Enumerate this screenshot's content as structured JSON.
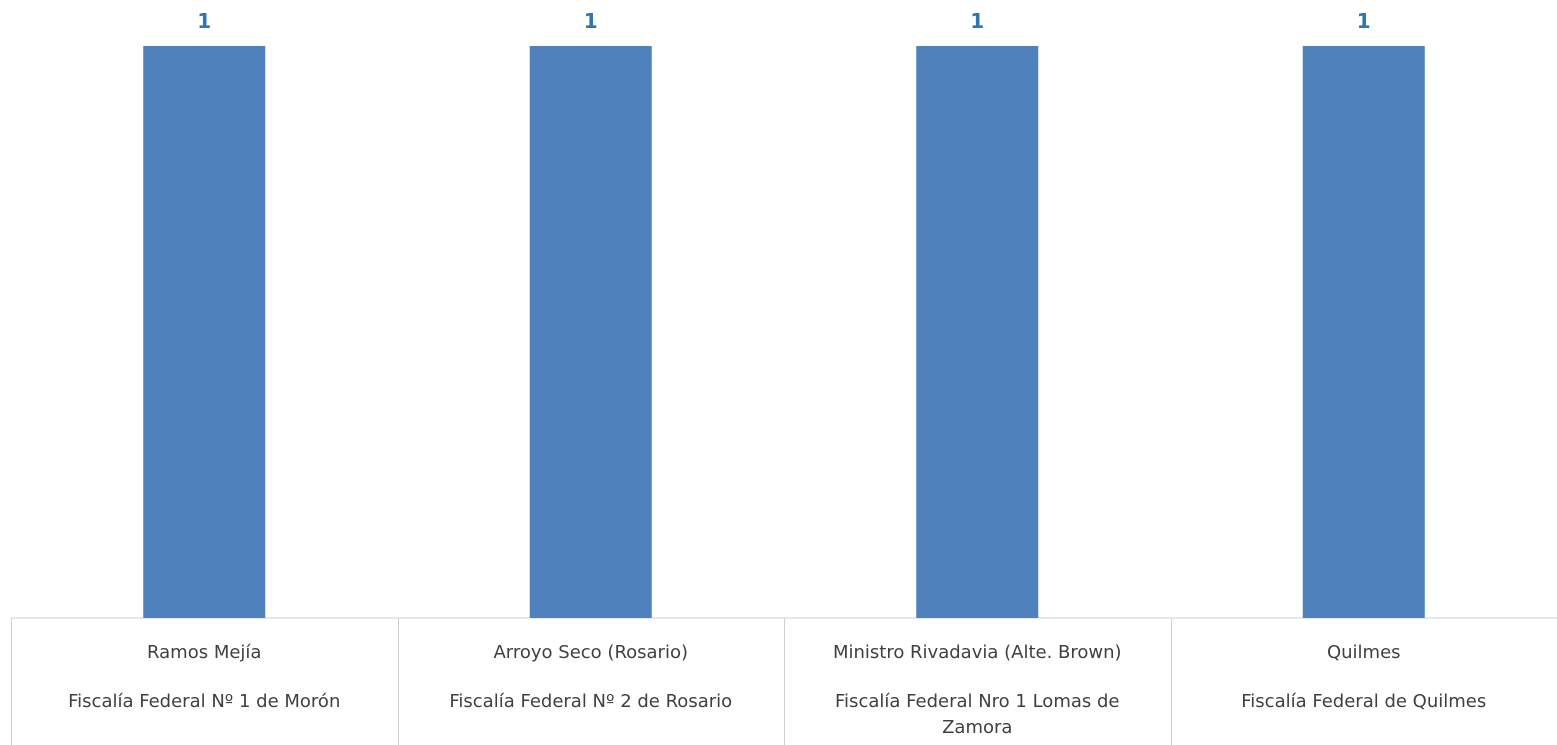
{
  "chart_data": {
    "type": "bar",
    "categories": [
      [
        "Ramos Mejía",
        "Fiscalía Federal Nº 1 de Morón"
      ],
      [
        "Arroyo Seco (Rosario)",
        "Fiscalía Federal Nº 2 de Rosario"
      ],
      [
        "Ministro Rivadavia (Alte. Brown)",
        "Fiscalía Federal Nro 1 Lomas de Zamora"
      ],
      [
        "Quilmes",
        "Fiscalía Federal de Quilmes"
      ]
    ],
    "values": [
      1,
      1,
      1,
      1
    ],
    "ylim": [
      0,
      1
    ],
    "bar_color": "#4F81BD",
    "label_color": "#2E75B6",
    "grid": false,
    "legend": "none",
    "data_labels": true
  }
}
